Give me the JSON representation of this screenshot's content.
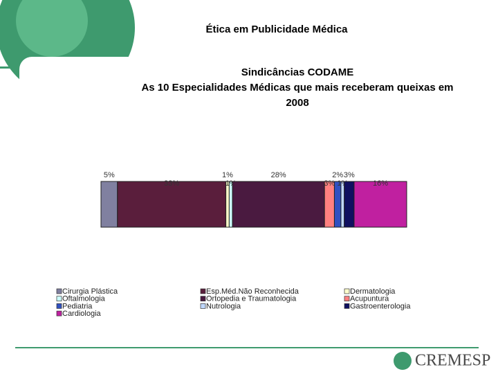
{
  "slide_title": "Ética em Publicidade Médica",
  "logo": "CREMESP",
  "chart_data": {
    "type": "stacked-bar",
    "title": [
      "Sindicâncias CODAME",
      "As 10 Especialidades Médicas que mais receberam queixas em",
      "2008"
    ],
    "categories": [
      "Cirurgia Plástica",
      "Esp.Méd.Não Reconhecida",
      "Dermatologia",
      "Oftalmologia",
      "Ortopedia e Traumatologia",
      "Acupuntura",
      "Pediatria",
      "Nutrologia",
      "Gastroenterologia",
      "Cardiologia"
    ],
    "values": [
      5,
      33,
      1,
      1,
      28,
      3,
      2,
      1,
      3,
      16
    ],
    "value_labels": [
      "5%",
      "33%",
      "1%",
      "1%",
      "28%",
      "3%",
      "2%",
      "1%",
      "3%",
      "16%"
    ],
    "colors": [
      "#8080a0",
      "#5a1e3c",
      "#ffffcc",
      "#ccffff",
      "#4a1a40",
      "#ff8080",
      "#3050c0",
      "#c0d8ff",
      "#101060",
      "#c020a0"
    ]
  }
}
